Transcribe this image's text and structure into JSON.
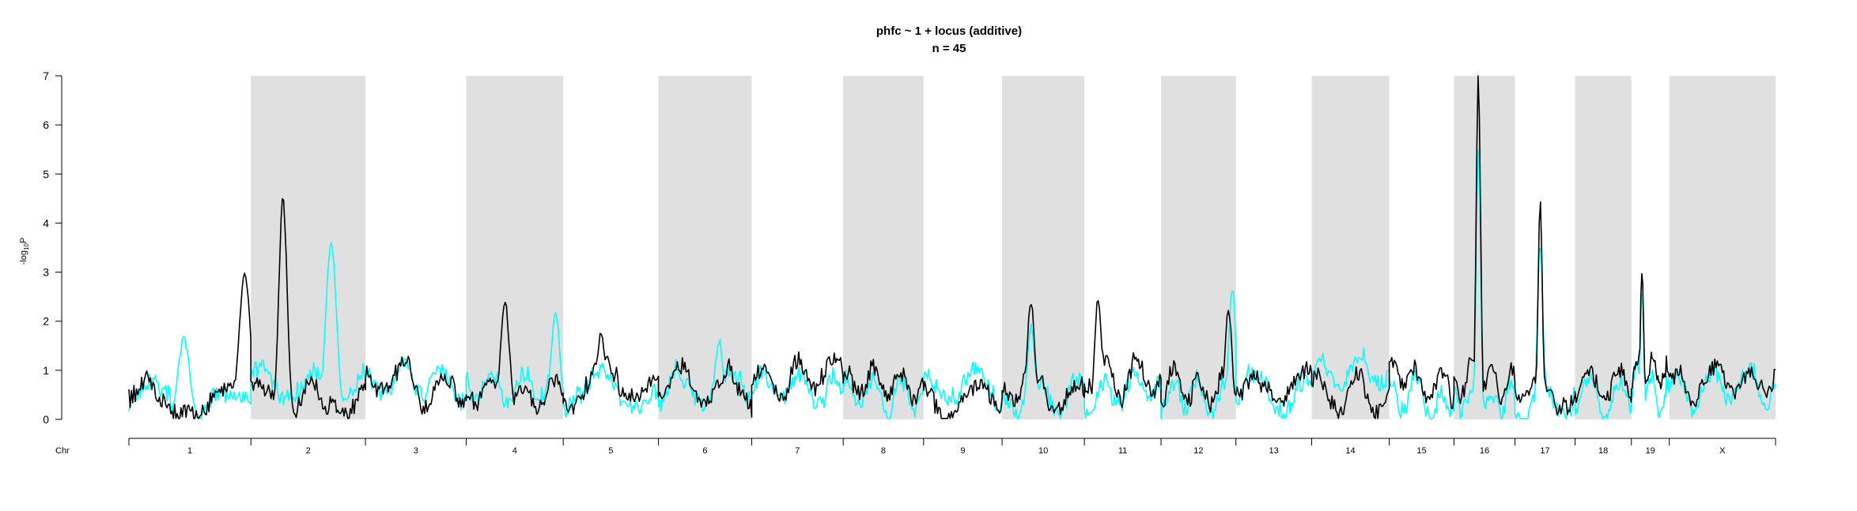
{
  "chart_data": {
    "type": "line",
    "title": "phfc ~ 1 + locus (additive)",
    "subtitle": "n = 45",
    "ylabel_main": "-log",
    "ylabel_sub": "10",
    "ylabel_tail": "P",
    "xlabel": "Chr",
    "ylim": [
      0,
      7
    ],
    "yticks": [
      0,
      1,
      2,
      3,
      4,
      5,
      6,
      7
    ],
    "shading": "alternating grey bands for even chromosomes",
    "chromosomes": [
      "1",
      "2",
      "3",
      "4",
      "5",
      "6",
      "7",
      "8",
      "9",
      "10",
      "11",
      "12",
      "13",
      "14",
      "15",
      "16",
      "17",
      "18",
      "19",
      "X"
    ],
    "chromosome_lengths": [
      1.32,
      1.24,
      1.09,
      1.05,
      1.03,
      1.01,
      0.99,
      0.87,
      0.85,
      0.89,
      0.83,
      0.81,
      0.82,
      0.84,
      0.7,
      0.66,
      0.65,
      0.61,
      0.41,
      1.15
    ],
    "series": [
      {
        "color": "#000000",
        "peaks": [
          {
            "chr": "1",
            "pos": 0.95,
            "value": 3.0
          },
          {
            "chr": "2",
            "pos": 0.28,
            "value": 4.5
          },
          {
            "chr": "4",
            "pos": 0.4,
            "value": 2.4
          },
          {
            "chr": "5",
            "pos": 0.4,
            "value": 1.75
          },
          {
            "chr": "10",
            "pos": 0.35,
            "value": 2.4
          },
          {
            "chr": "11",
            "pos": 0.18,
            "value": 2.5
          },
          {
            "chr": "12",
            "pos": 0.9,
            "value": 2.3
          },
          {
            "chr": "16",
            "pos": 0.4,
            "value": 7.0
          },
          {
            "chr": "17",
            "pos": 0.42,
            "value": 4.4
          },
          {
            "chr": "19",
            "pos": 0.28,
            "value": 3.0
          }
        ]
      },
      {
        "color": "#00ffff",
        "peaks": [
          {
            "chr": "1",
            "pos": 0.45,
            "value": 1.65
          },
          {
            "chr": "2",
            "pos": 0.7,
            "value": 3.6
          },
          {
            "chr": "4",
            "pos": 0.92,
            "value": 2.2
          },
          {
            "chr": "6",
            "pos": 0.65,
            "value": 1.6
          },
          {
            "chr": "10",
            "pos": 0.35,
            "value": 1.9
          },
          {
            "chr": "12",
            "pos": 0.95,
            "value": 2.7
          },
          {
            "chr": "16",
            "pos": 0.4,
            "value": 5.6
          },
          {
            "chr": "17",
            "pos": 0.42,
            "value": 3.6
          },
          {
            "chr": "19",
            "pos": 0.28,
            "value": 2.6
          }
        ]
      }
    ]
  }
}
